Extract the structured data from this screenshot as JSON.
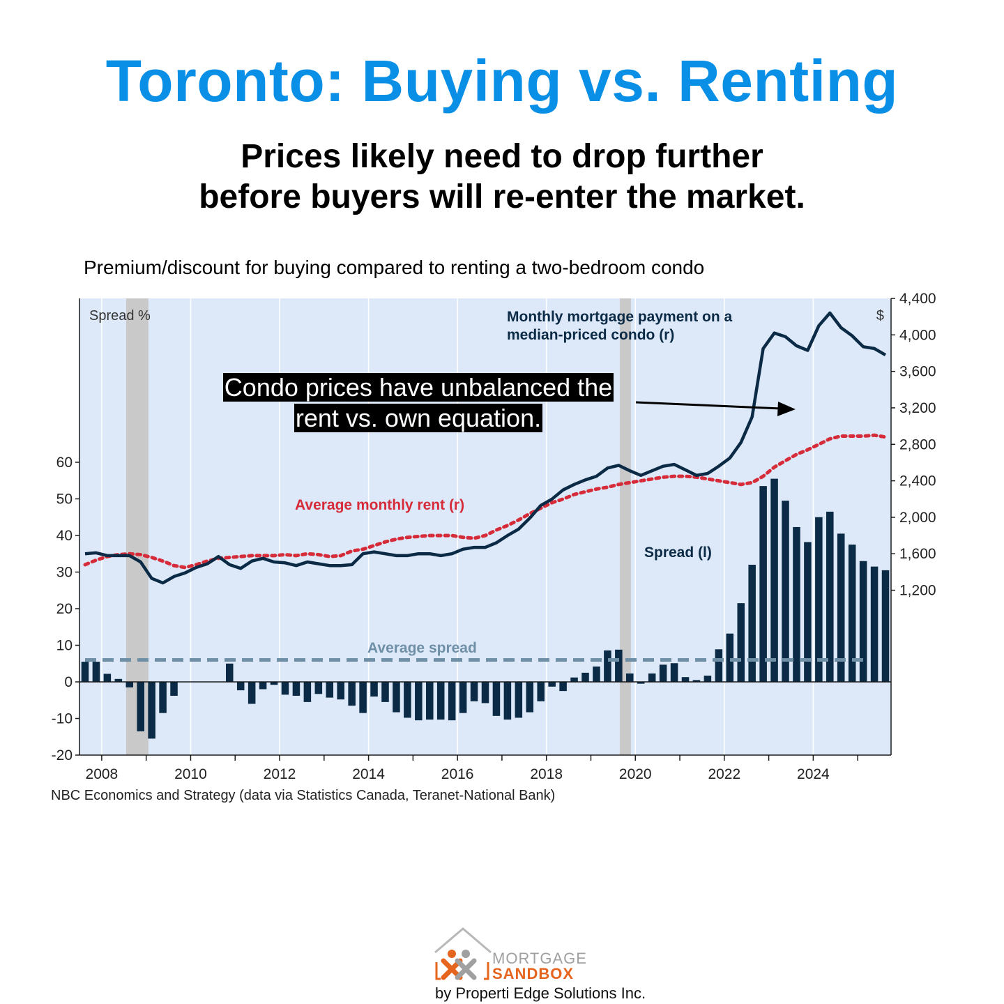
{
  "header": {
    "title": "Toronto: Buying vs. Renting",
    "subtitle_line1": "Prices likely need to drop further",
    "subtitle_line2": "before buyers will re-enter the market."
  },
  "chart_caption": "Premium/discount for buying compared to renting a two-bedroom condo",
  "callout": {
    "line1": "Condo prices have unbalanced the",
    "line2": "rent vs. own equation."
  },
  "source": "NBC Economics and Strategy (data via Statistics Canada, Teranet-National Bank)",
  "logo": {
    "mortgage": "MORTGAGE",
    "sandbox": "SANDBOX",
    "byline": "by Properti Edge Solutions Inc."
  },
  "colors": {
    "title": "#0a8fe6",
    "bars": "#0b2a45",
    "mortgage_line": "#0b2a45",
    "rent_line": "#d62c3a",
    "average_spread": "#6f8fa6",
    "plot_background": "#dde9f9",
    "recession_band": "#c9c9c9"
  },
  "chart_data": {
    "type": "bar",
    "frequency": "quarterly",
    "x_start": 2007.5,
    "x_step": 0.25,
    "xlim": [
      2007.5,
      2025.75
    ],
    "x_ticks": [
      "2008",
      "2010",
      "2012",
      "2014",
      "2016",
      "2018",
      "2020",
      "2022",
      "2024"
    ],
    "x_tick_values": [
      2008,
      2010,
      2012,
      2014,
      2016,
      2018,
      2020,
      2022,
      2024
    ],
    "left_axis": {
      "label": "Spread %",
      "range": [
        -20,
        60
      ],
      "ticks": [
        "-20",
        "-10",
        "0",
        "10",
        "20",
        "30",
        "40",
        "50",
        "60"
      ],
      "tick_values": [
        -20,
        -10,
        0,
        10,
        20,
        30,
        40,
        50,
        60
      ]
    },
    "right_axis": {
      "label": "$",
      "range": [
        0,
        4400
      ],
      "ticks": [
        "1,200",
        "1,600",
        "2,000",
        "2,400",
        "2,800",
        "3,200",
        "3,600",
        "4,000",
        "4,400"
      ],
      "tick_values": [
        1200,
        1600,
        2000,
        2400,
        2800,
        3200,
        3600,
        4000,
        4400
      ]
    },
    "recession_bands": [
      [
        2008.55,
        2009.05
      ],
      [
        2019.65,
        2019.9
      ]
    ],
    "series": [
      {
        "name": "Spread (l)",
        "type": "bar",
        "axis": "left",
        "values": [
          5.5,
          5.5,
          2.2,
          0.8,
          -1.5,
          -13.5,
          -15.5,
          -8.5,
          -3.8,
          0,
          0,
          0,
          0,
          5,
          -2.3,
          -6,
          -2,
          -0.8,
          -3.5,
          -3.8,
          -5.5,
          -3.3,
          -4.3,
          -4.8,
          -6.5,
          -8.5,
          -4,
          -5.5,
          -8.3,
          -9.8,
          -10.5,
          -10.3,
          -10.3,
          -10.5,
          -8.5,
          -5.3,
          -5.8,
          -9.3,
          -10.3,
          -9.8,
          -8.3,
          -5.3,
          -1.3,
          -2.5,
          1.2,
          2.5,
          4.2,
          8.6,
          8.8,
          2.3,
          -0.5,
          2.3,
          4.7,
          5.1,
          1.3,
          0.5,
          1.7,
          8.9,
          13.2,
          21.5,
          32,
          53.5,
          55.5,
          49.5,
          42.3,
          38.2,
          45,
          46.5,
          40.5,
          37.5,
          33,
          31.5,
          30.5
        ]
      },
      {
        "name": "Monthly mortgage payment on a median-priced condo (r)",
        "type": "line",
        "axis": "right",
        "values": [
          1600,
          1610,
          1580,
          1580,
          1580,
          1510,
          1330,
          1280,
          1350,
          1390,
          1450,
          1490,
          1570,
          1480,
          1440,
          1520,
          1550,
          1510,
          1500,
          1470,
          1510,
          1490,
          1470,
          1470,
          1480,
          1600,
          1620,
          1600,
          1580,
          1580,
          1600,
          1600,
          1580,
          1600,
          1650,
          1670,
          1670,
          1720,
          1800,
          1870,
          1990,
          2130,
          2200,
          2300,
          2360,
          2410,
          2450,
          2540,
          2570,
          2510,
          2460,
          2510,
          2560,
          2580,
          2520,
          2460,
          2480,
          2560,
          2650,
          2820,
          3100,
          3850,
          4020,
          3980,
          3880,
          3830,
          4100,
          4240,
          4080,
          3990,
          3870,
          3850,
          3780
        ]
      },
      {
        "name": "Average monthly rent (r)",
        "type": "line",
        "axis": "right",
        "values": [
          1480,
          1530,
          1570,
          1590,
          1600,
          1590,
          1560,
          1520,
          1470,
          1450,
          1480,
          1520,
          1550,
          1560,
          1570,
          1580,
          1580,
          1580,
          1590,
          1580,
          1600,
          1590,
          1570,
          1580,
          1630,
          1650,
          1690,
          1730,
          1760,
          1780,
          1790,
          1800,
          1800,
          1800,
          1780,
          1770,
          1800,
          1860,
          1910,
          1970,
          2040,
          2100,
          2160,
          2200,
          2250,
          2280,
          2310,
          2330,
          2360,
          2380,
          2400,
          2420,
          2440,
          2450,
          2450,
          2440,
          2420,
          2400,
          2380,
          2360,
          2380,
          2450,
          2550,
          2620,
          2690,
          2740,
          2800,
          2860,
          2890,
          2890,
          2890,
          2900,
          2880
        ]
      }
    ],
    "average_spread": {
      "label": "Average spread",
      "value": 6
    },
    "annotations": [
      {
        "text": "Monthly mortgage payment on a",
        "role": "series-label"
      },
      {
        "text": "median-priced condo (r)",
        "role": "series-label"
      },
      {
        "text": "Average monthly rent (r)",
        "role": "series-label"
      },
      {
        "text": "Spread (l)",
        "role": "series-label"
      }
    ]
  }
}
